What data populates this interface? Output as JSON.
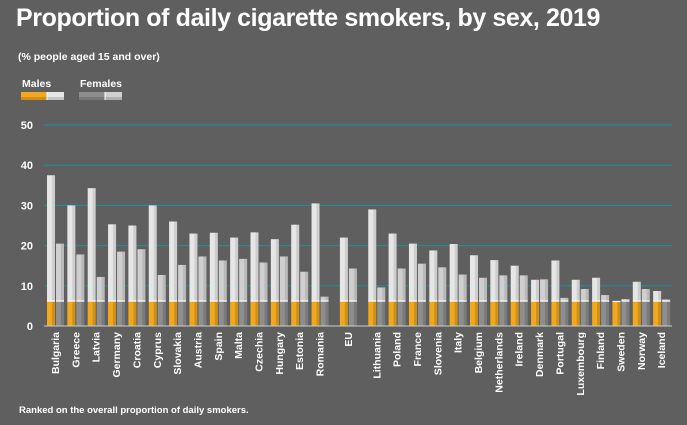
{
  "header": {
    "title": "Proportion of daily cigarette smokers, by sex, 2019",
    "subtitle": "(% people aged 15 and over)"
  },
  "footer": {
    "note": "Ranked on the overall proportion of daily smokers."
  },
  "colors": {
    "background": "#5f5f5f",
    "gridline": "#1f8f98",
    "male_filter": "#f0a81e",
    "male_stick": "#e6e6e6",
    "female_filter": "#8e8e8e",
    "female_stick": "#cfcfcf"
  },
  "chart_data": {
    "type": "bar",
    "title": "Proportion of daily cigarette smokers, by sex, 2019",
    "subtitle": "(% people aged 15 and over)",
    "xlabel": "",
    "ylabel": "",
    "ylim": [
      0,
      50
    ],
    "yticks": [
      0,
      10,
      20,
      30,
      40,
      50
    ],
    "grid": true,
    "legend_position": "top-left",
    "categories": [
      "Bulgaria",
      "Greece",
      "Latvia",
      "Germany",
      "Croatia",
      "Cyprus",
      "Slovakia",
      "Austria",
      "Spain",
      "Malta",
      "Czechia",
      "Hungary",
      "Estonia",
      "Romania",
      "EU",
      "Lithuania",
      "Poland",
      "France",
      "Slovenia",
      "Italy",
      "Belgium",
      "Netherlands",
      "Ireland",
      "Denmark",
      "Portugal",
      "Luxembourg",
      "Finland",
      "Sweden",
      "Norway",
      "Iceland"
    ],
    "series": [
      {
        "name": "Males",
        "values": [
          37.5,
          30,
          34.3,
          25.3,
          25,
          30,
          26,
          23,
          23.2,
          22,
          23.3,
          21.6,
          25.2,
          30.5,
          22,
          29,
          23,
          20.5,
          18.8,
          20.4,
          17.6,
          16.4,
          15,
          11.5,
          16.3,
          11.5,
          12,
          6.1,
          11,
          8.7
        ]
      },
      {
        "name": "Females",
        "values": [
          20.5,
          17.8,
          12.2,
          18.5,
          19.1,
          12.7,
          15.2,
          17.3,
          16.3,
          16.7,
          15.8,
          17.3,
          13.5,
          7.3,
          14.3,
          9.6,
          14.3,
          15.5,
          14.6,
          12.8,
          12,
          12.6,
          12.6,
          11.6,
          7,
          9.2,
          7.7,
          6.7,
          9.2,
          6.6
        ]
      }
    ]
  }
}
